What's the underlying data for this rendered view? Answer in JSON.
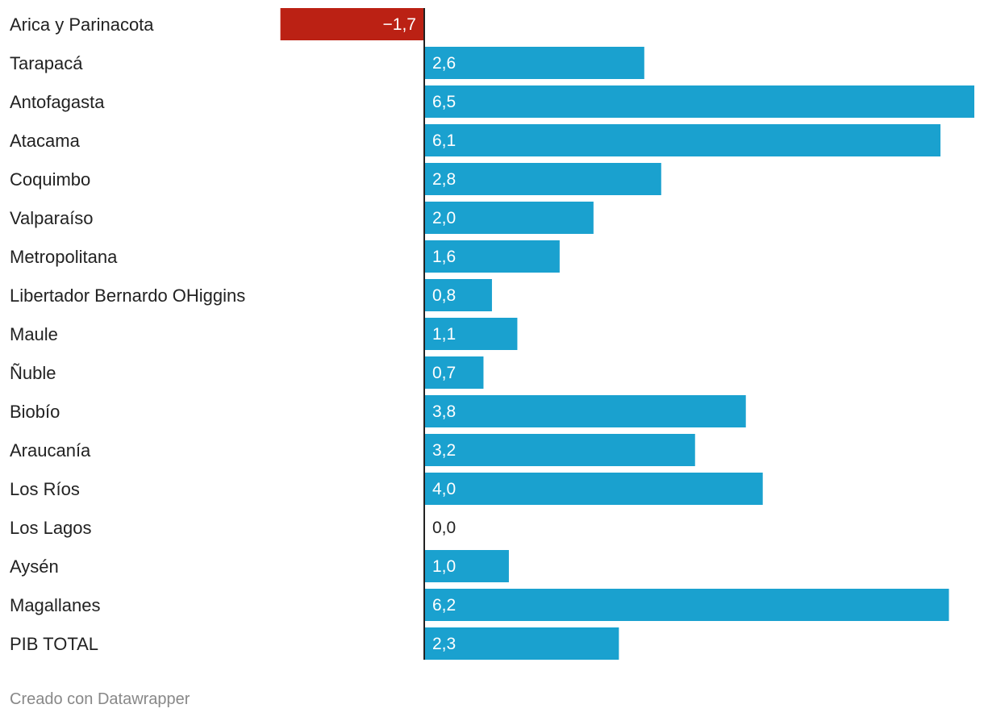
{
  "chart_data": {
    "type": "bar",
    "orientation": "horizontal",
    "categories": [
      "Arica y Parinacota",
      "Tarapacá",
      "Antofagasta",
      "Atacama",
      "Coquimbo",
      "Valparaíso",
      "Metropolitana",
      "Libertador Bernardo OHiggins",
      "Maule",
      "Ñuble",
      "Biobío",
      "Araucanía",
      "Los Ríos",
      "Los Lagos",
      "Aysén",
      "Magallanes",
      "PIB TOTAL"
    ],
    "values": [
      -1.7,
      2.6,
      6.5,
      6.1,
      2.8,
      2.0,
      1.6,
      0.8,
      1.1,
      0.7,
      3.8,
      3.2,
      4.0,
      0.0,
      1.0,
      6.2,
      2.3
    ],
    "value_labels": [
      "−1,7",
      "2,6",
      "6,5",
      "6,1",
      "2,8",
      "2,0",
      "1,6",
      "0,8",
      "1,1",
      "0,7",
      "3,8",
      "3,2",
      "4,0",
      "0,0",
      "1,0",
      "6,2",
      "2,3"
    ],
    "xlim": [
      -1.7,
      6.5
    ],
    "colors": {
      "positive": "#1aa1cf",
      "negative": "#bb2114",
      "axis": "#222222"
    }
  },
  "footer": {
    "credit": "Creado con Datawrapper"
  }
}
